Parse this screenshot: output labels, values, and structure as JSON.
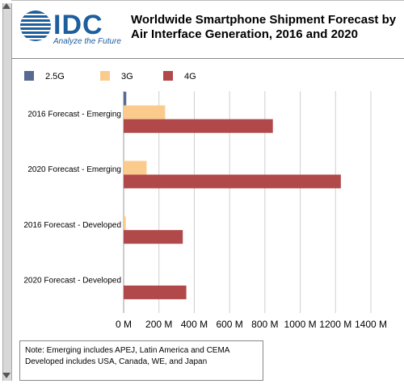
{
  "logo": {
    "text": "IDC",
    "tagline": "Analyze the Future",
    "color": "#1c5e9e"
  },
  "title_line1": "Worldwide Smartphone Shipment Forecast by",
  "title_line2": "Air Interface Generation, 2016 and 2020",
  "note": {
    "line1": "Note: Emerging includes APEJ, Latin America and CEMA",
    "line2": "Developed includes USA, Canada, WE, and Japan"
  },
  "chart_data": {
    "type": "bar",
    "orientation": "horizontal",
    "title": "Worldwide Smartphone Shipment Forecast by Air Interface Generation, 2016 and 2020",
    "categories": [
      "2016 Forecast - Emerging",
      "2020 Forecast - Emerging",
      "2016 Forecast - Developed",
      "2020 Forecast - Developed"
    ],
    "series": [
      {
        "name": "2.5G",
        "color": "#566a92",
        "values": [
          15,
          0,
          0,
          0
        ]
      },
      {
        "name": "3G",
        "color": "#fbcb8e",
        "values": [
          235,
          130,
          12,
          0
        ]
      },
      {
        "name": "4G",
        "color": "#b1494a",
        "values": [
          845,
          1230,
          335,
          355
        ]
      }
    ],
    "xlim": [
      0,
      1400
    ],
    "xticks": [
      0,
      200,
      400,
      600,
      800,
      1000,
      1200,
      1400
    ],
    "xtick_labels": [
      "0 M",
      "200 M",
      "400 M",
      "600 M",
      "800 M",
      "1000 M",
      "1200 M",
      "1400 M"
    ],
    "grid": true,
    "legend_position": "top-left"
  }
}
